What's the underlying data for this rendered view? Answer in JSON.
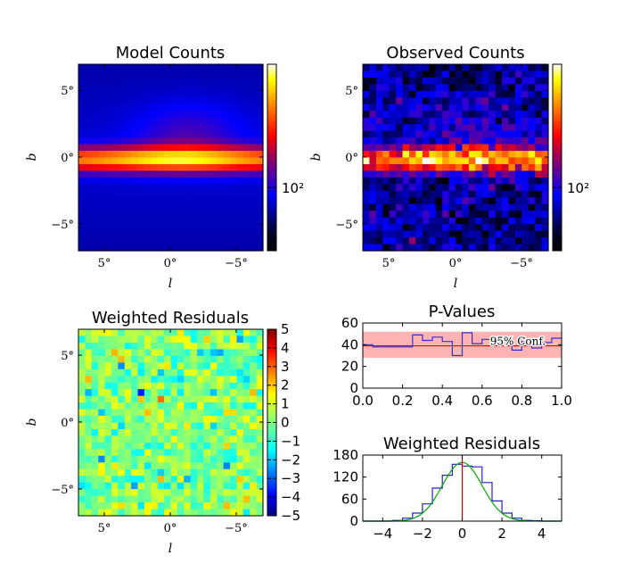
{
  "chart_data": [
    {
      "id": "model",
      "type": "heatmap",
      "title": "Model Counts",
      "xlabel": "l",
      "ylabel": "b",
      "xtick_labels": [
        "5°",
        "0°",
        "−5°"
      ],
      "ytick_labels": [
        "5°",
        "0°",
        "−5°"
      ],
      "colorbar": {
        "scale": "log",
        "tick_labels": [
          "10²"
        ]
      }
    },
    {
      "id": "observed",
      "type": "heatmap",
      "title": "Observed Counts",
      "xlabel": "l",
      "ylabel": "b",
      "xtick_labels": [
        "5°",
        "0°",
        "−5°"
      ],
      "ytick_labels": [
        "5°",
        "0°",
        "−5°"
      ],
      "colorbar": {
        "scale": "log",
        "tick_labels": [
          "10²"
        ]
      }
    },
    {
      "id": "residmap",
      "type": "heatmap",
      "title": "Weighted Residuals",
      "xlabel": "l",
      "ylabel": "b",
      "xtick_labels": [
        "5°",
        "0°",
        "−5°"
      ],
      "ytick_labels": [
        "5°",
        "0°",
        "−5°"
      ],
      "colorbar": {
        "scale": "linear",
        "range": [
          -5,
          5
        ],
        "tick_labels": [
          "5",
          "4",
          "3",
          "2",
          "1",
          "0",
          "−1",
          "−2",
          "−3",
          "−4",
          "−5"
        ]
      }
    },
    {
      "id": "pvalues",
      "type": "line",
      "title": "P-Values",
      "xlim": [
        0,
        1
      ],
      "ylim": [
        0,
        60
      ],
      "xtick_labels": [
        "0.0",
        "0.2",
        "0.4",
        "0.6",
        "0.8",
        "1.0"
      ],
      "ytick_labels": [
        "60",
        "40",
        "20",
        "0"
      ],
      "band": {
        "low": 28,
        "high": 52,
        "color": "#ff9999"
      },
      "mean_line": 39,
      "annotation": "95% Conf.",
      "x": [
        0.0,
        0.05,
        0.1,
        0.15,
        0.2,
        0.25,
        0.3,
        0.35,
        0.4,
        0.45,
        0.5,
        0.55,
        0.6,
        0.65,
        0.7,
        0.75,
        0.8,
        0.85,
        0.9,
        0.95,
        1.0
      ],
      "values": [
        40,
        38,
        38,
        38,
        38,
        49,
        44,
        47,
        43,
        30,
        51,
        41,
        45,
        43,
        43,
        35,
        43,
        37,
        42,
        46,
        46
      ]
    },
    {
      "id": "residhist",
      "type": "bar",
      "title": "Weighted Residuals",
      "xlim": [
        -5,
        5
      ],
      "ylim": [
        0,
        180
      ],
      "xtick_labels": [
        "−4",
        "−2",
        "0",
        "2",
        "4"
      ],
      "ytick_labels": [
        "180",
        "120",
        "60",
        "0"
      ],
      "bin_edges": [
        -5,
        -4.5,
        -4,
        -3.5,
        -3,
        -2.5,
        -2,
        -1.5,
        -1,
        -0.5,
        0,
        0.5,
        1,
        1.5,
        2,
        2.5,
        3,
        3.5,
        4,
        4.5,
        5
      ],
      "counts": [
        0,
        0,
        0,
        2,
        8,
        22,
        47,
        90,
        125,
        155,
        150,
        148,
        105,
        55,
        22,
        8,
        2,
        1,
        0,
        0
      ],
      "gaussian": {
        "amplitude": 160,
        "mean": 0,
        "sigma": 1
      },
      "zero_line": 0
    }
  ]
}
